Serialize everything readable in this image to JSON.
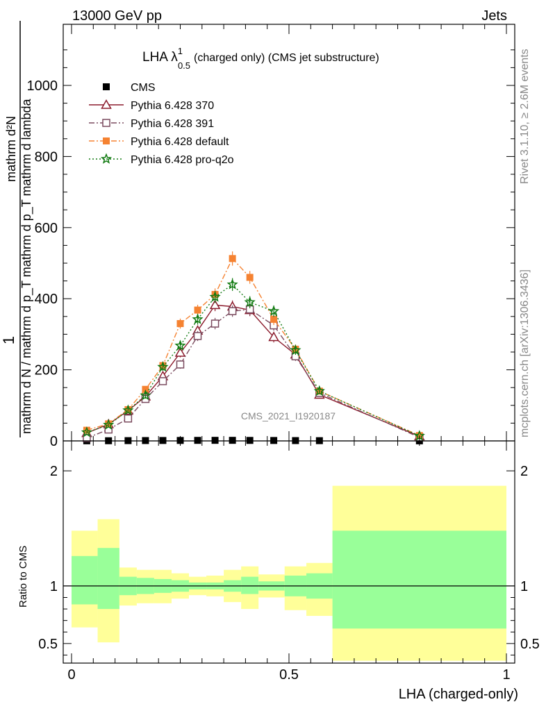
{
  "header": {
    "energy_label": "13000 GeV pp",
    "process_label": "Jets"
  },
  "side_labels": {
    "rivet": "Rivet 3.1.10, ≥ 2.6M events",
    "mcplots": "mcplots.cern.ch [arXiv:1306.3436]"
  },
  "colors": {
    "cms": "#000000",
    "p370": "#8b1a2b",
    "p391": "#7a4a5e",
    "pdefault": "#f58231",
    "pq2o": "#117a11",
    "band_inner": "#99ff99",
    "band_outer": "#ffff99"
  },
  "chart_data": [
    {
      "type": "line",
      "title": "LHA λ",
      "title_sup": "1",
      "title_sub": "0.5",
      "title_suffix": "(charged only) (CMS jet substructure)",
      "ylabel_numerator": "1",
      "ylabel_denominator": "mathrm d N / mathrm d p_T mathrm d p_T mathrm d lambda",
      "ylabel_top": "mathrm d²N",
      "ylim": [
        0,
        1000
      ],
      "y_ticks": [
        0,
        200,
        400,
        600,
        800,
        1000
      ],
      "y_tick_labels": [
        "0",
        "200",
        "400",
        "600",
        "800",
        "1000"
      ],
      "xlim": [
        0,
        1
      ],
      "watermark": "CMS_2021_I1920187",
      "legend": [
        {
          "key": "cms",
          "label": "CMS",
          "marker": "square-filled",
          "line": "none"
        },
        {
          "key": "p370",
          "label": "Pythia 6.428 370",
          "marker": "triangle-open",
          "line": "solid"
        },
        {
          "key": "p391",
          "label": "Pythia 6.428 391",
          "marker": "square-open",
          "line": "dashdot"
        },
        {
          "key": "pdefault",
          "label": "Pythia 6.428 default",
          "marker": "square-filled",
          "line": "dashdot"
        },
        {
          "key": "pq2o",
          "label": "Pythia 6.428 pro-q2o",
          "marker": "star",
          "line": "dotted"
        }
      ],
      "x": [
        0.035,
        0.085,
        0.13,
        0.17,
        0.21,
        0.25,
        0.29,
        0.33,
        0.37,
        0.41,
        0.465,
        0.515,
        0.57,
        0.8
      ],
      "series": [
        {
          "key": "cms",
          "name": "CMS",
          "values": [
            0.3,
            0.5,
            0.8,
            1.0,
            1.2,
            1.3,
            1.5,
            1.6,
            1.6,
            1.4,
            1.2,
            0.9,
            0.7,
            0.2
          ],
          "errors": [
            0,
            0,
            0,
            0,
            0,
            0,
            0,
            0,
            0,
            0,
            0,
            0,
            0,
            0
          ]
        },
        {
          "key": "p370",
          "name": "Pythia 6.428 370",
          "values": [
            22,
            47,
            85,
            125,
            182,
            248,
            310,
            382,
            378,
            368,
            292,
            243,
            130,
            13
          ],
          "errors": [
            4,
            5,
            7,
            9,
            11,
            13,
            15,
            17,
            17,
            17,
            15,
            13,
            8,
            2
          ]
        },
        {
          "key": "p391",
          "name": "Pythia 6.428 391",
          "values": [
            8,
            32,
            63,
            118,
            168,
            215,
            295,
            330,
            365,
            370,
            325,
            238,
            135,
            10
          ],
          "errors": [
            3,
            4,
            6,
            8,
            10,
            12,
            14,
            16,
            16,
            17,
            15,
            13,
            8,
            2
          ]
        },
        {
          "key": "pdefault",
          "name": "Pythia 6.428 default",
          "values": [
            30,
            48,
            88,
            145,
            212,
            330,
            368,
            412,
            513,
            460,
            342,
            258,
            140,
            15
          ],
          "errors": [
            4,
            5,
            7,
            9,
            11,
            14,
            15,
            17,
            20,
            18,
            16,
            13,
            8,
            2
          ]
        },
        {
          "key": "pq2o",
          "name": "Pythia 6.428 pro-q2o",
          "values": [
            24,
            45,
            86,
            128,
            208,
            268,
            342,
            405,
            440,
            390,
            365,
            255,
            140,
            14
          ],
          "errors": [
            4,
            5,
            7,
            9,
            11,
            13,
            15,
            17,
            18,
            17,
            16,
            13,
            8,
            2
          ]
        }
      ]
    },
    {
      "type": "area",
      "ylabel": "Ratio to CMS",
      "xlabel": "LHA (charged-only)",
      "xlim": [
        0,
        1
      ],
      "ylim": [
        0.33,
        2.26
      ],
      "x_ticks": [
        0,
        0.5,
        1
      ],
      "x_tick_labels": [
        "0",
        "0.5",
        "1"
      ],
      "y_ticks": [
        0.5,
        1,
        2
      ],
      "y_tick_labels": [
        "0.5",
        "1",
        "2"
      ],
      "reference_line": 1,
      "bins": [
        {
          "x0": 0.0,
          "x1": 0.06,
          "inner": [
            0.84,
            1.26
          ],
          "outer": [
            0.64,
            1.48
          ]
        },
        {
          "x0": 0.06,
          "x1": 0.11,
          "inner": [
            0.8,
            1.33
          ],
          "outer": [
            0.51,
            1.58
          ]
        },
        {
          "x0": 0.11,
          "x1": 0.15,
          "inner": [
            0.92,
            1.08
          ],
          "outer": [
            0.83,
            1.16
          ]
        },
        {
          "x0": 0.15,
          "x1": 0.19,
          "inner": [
            0.93,
            1.07
          ],
          "outer": [
            0.85,
            1.14
          ]
        },
        {
          "x0": 0.19,
          "x1": 0.23,
          "inner": [
            0.94,
            1.06
          ],
          "outer": [
            0.85,
            1.14
          ]
        },
        {
          "x0": 0.23,
          "x1": 0.27,
          "inner": [
            0.95,
            1.05
          ],
          "outer": [
            0.89,
            1.11
          ]
        },
        {
          "x0": 0.27,
          "x1": 0.31,
          "inner": [
            0.97,
            1.03
          ],
          "outer": [
            0.92,
            1.08
          ]
        },
        {
          "x0": 0.31,
          "x1": 0.35,
          "inner": [
            0.97,
            1.03
          ],
          "outer": [
            0.91,
            1.09
          ]
        },
        {
          "x0": 0.35,
          "x1": 0.39,
          "inner": [
            0.95,
            1.05
          ],
          "outer": [
            0.86,
            1.14
          ]
        },
        {
          "x0": 0.39,
          "x1": 0.43,
          "inner": [
            0.93,
            1.08
          ],
          "outer": [
            0.8,
            1.17
          ]
        },
        {
          "x0": 0.43,
          "x1": 0.49,
          "inner": [
            0.96,
            1.04
          ],
          "outer": [
            0.9,
            1.1
          ]
        },
        {
          "x0": 0.49,
          "x1": 0.54,
          "inner": [
            0.91,
            1.09
          ],
          "outer": [
            0.79,
            1.17
          ]
        },
        {
          "x0": 0.54,
          "x1": 0.6,
          "inner": [
            0.89,
            1.11
          ],
          "outer": [
            0.74,
            1.2
          ]
        },
        {
          "x0": 0.6,
          "x1": 1.0,
          "inner": [
            0.63,
            1.48
          ],
          "outer": [
            0.35,
            1.87
          ]
        }
      ]
    }
  ]
}
